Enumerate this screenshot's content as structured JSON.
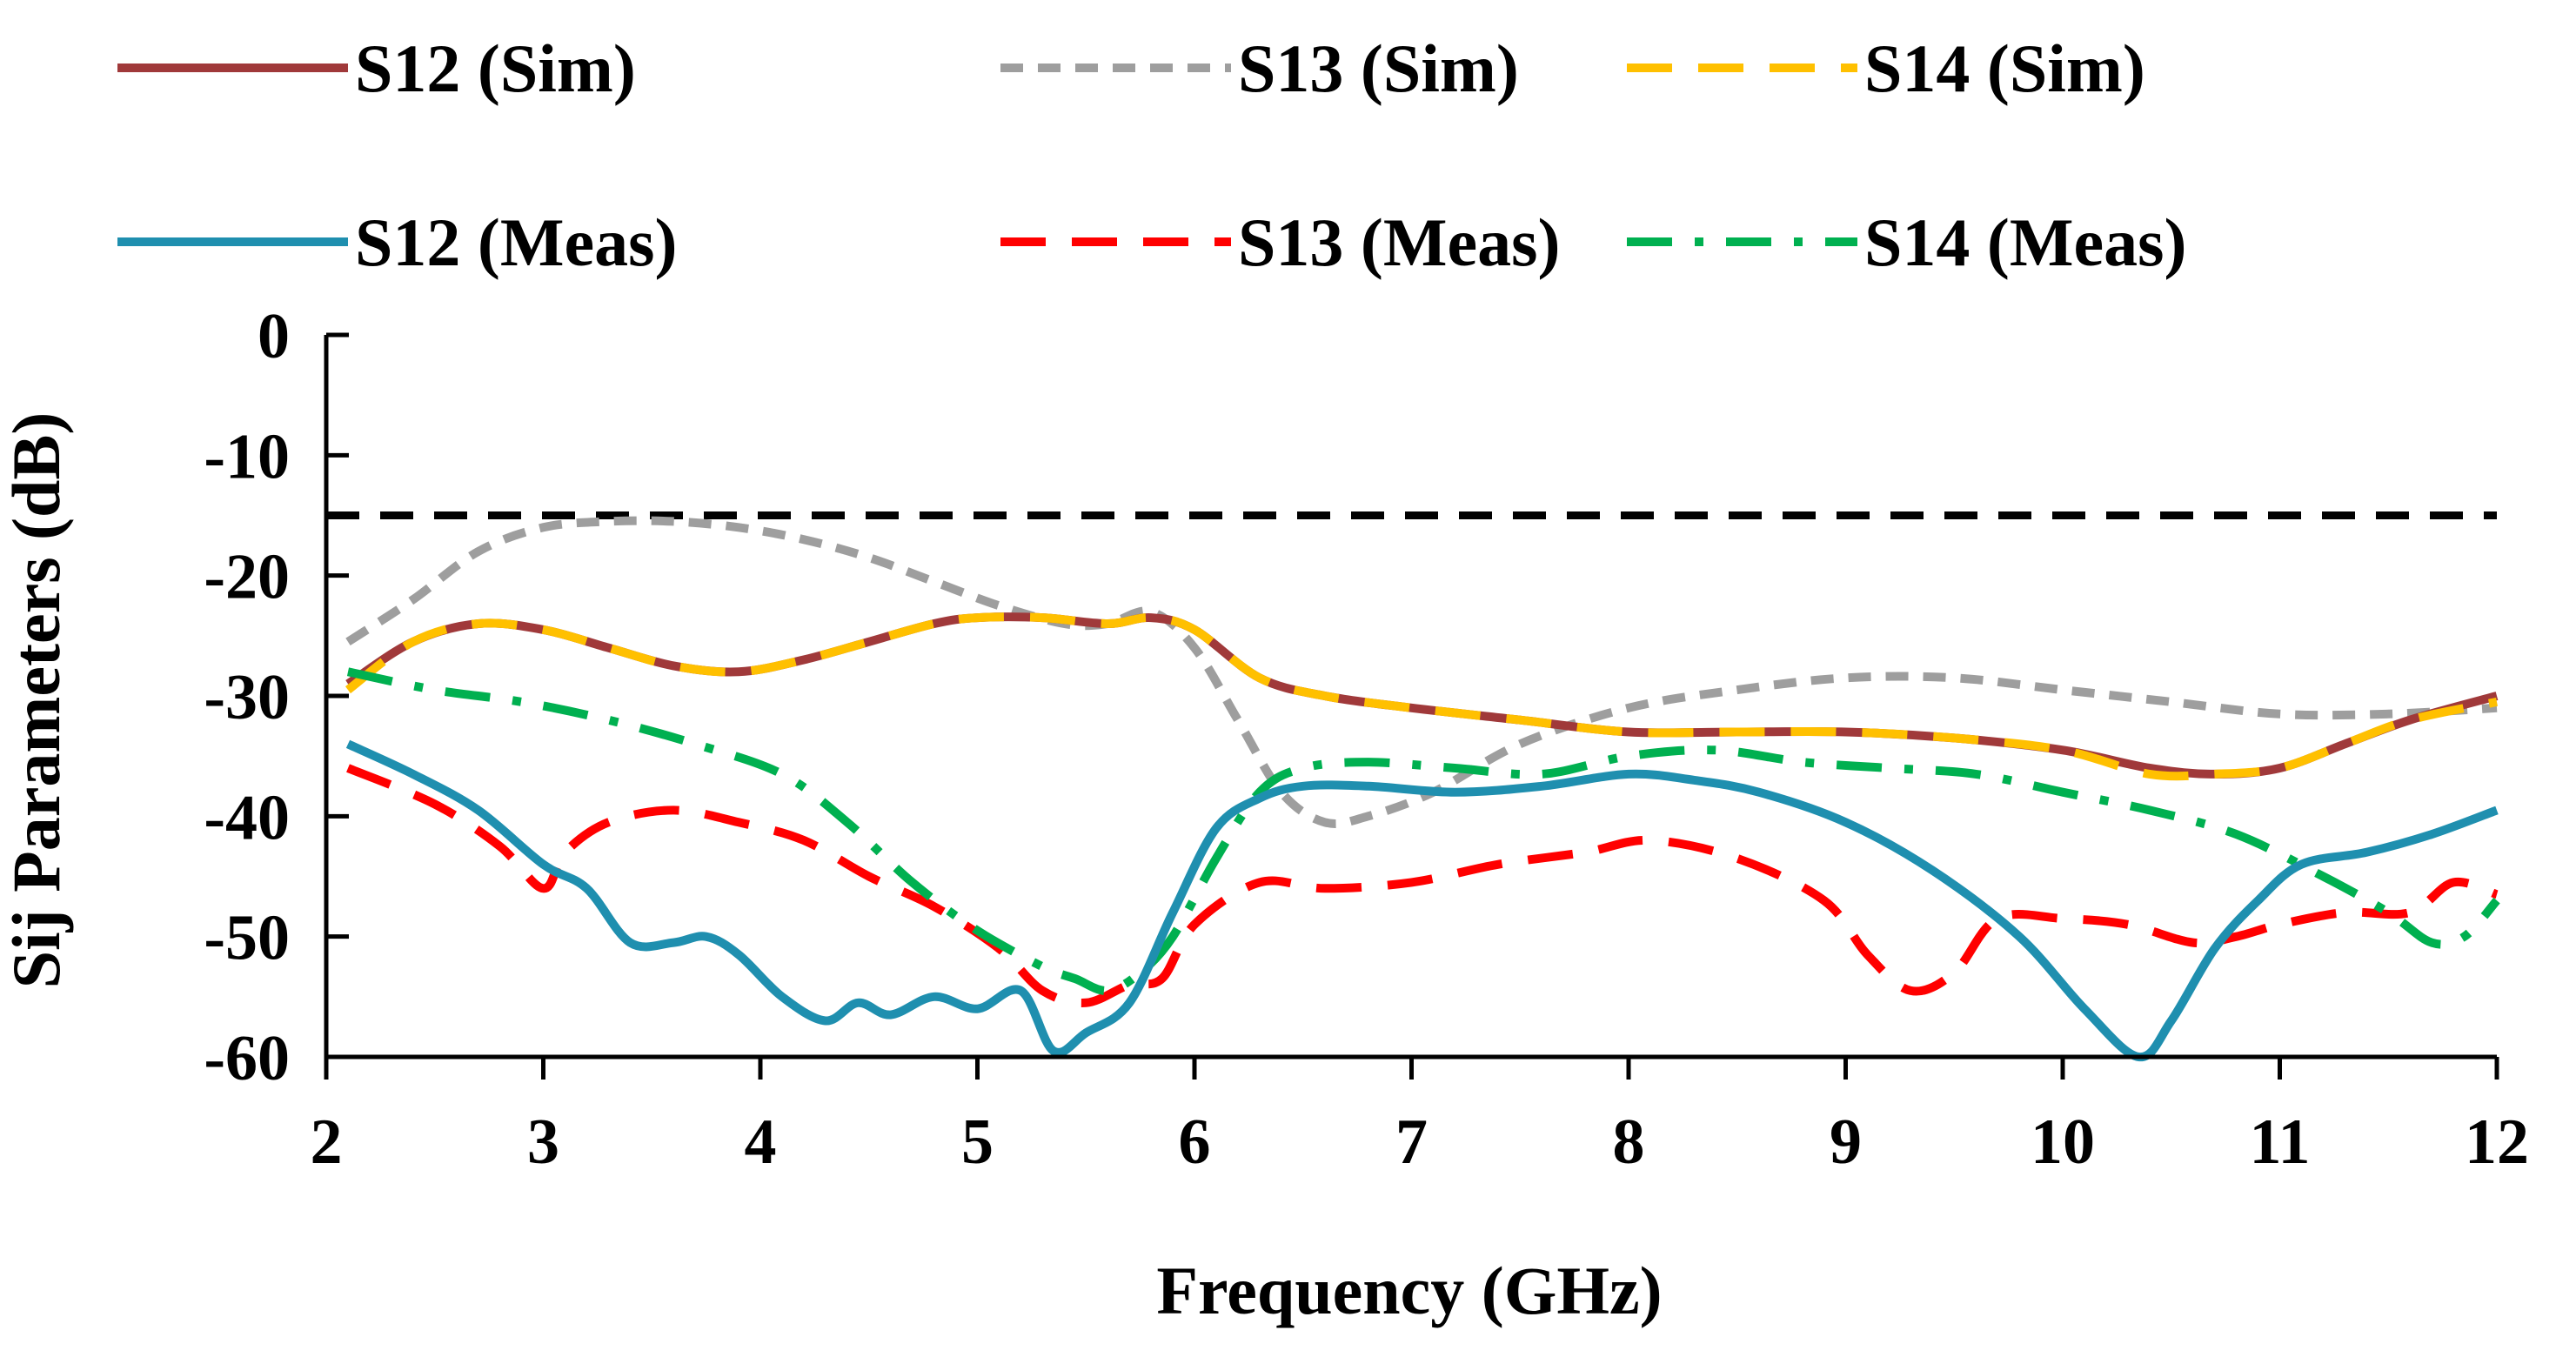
{
  "chart_data": {
    "type": "line",
    "xlabel": "Frequency (GHz)",
    "ylabel": "Sij Parameters (dB)",
    "xlim": [
      2,
      12
    ],
    "ylim": [
      -60,
      0
    ],
    "x_ticks": [
      "2",
      "3",
      "4",
      "5",
      "6",
      "7",
      "8",
      "9",
      "10",
      "11",
      "12"
    ],
    "y_ticks": [
      "0",
      "-10",
      "-20",
      "-30",
      "-40",
      "-50",
      "-60"
    ],
    "grid": false,
    "legend_position": "top",
    "threshold": {
      "y": -15,
      "color": "#000000",
      "style": "dashed"
    },
    "series": [
      {
        "name": "S12 (Sim)",
        "color": "#A0393A",
        "dash": "solid",
        "x": [
          2.1,
          2.4,
          2.7,
          3.0,
          3.3,
          3.6,
          3.9,
          4.2,
          4.5,
          4.8,
          5.0,
          5.3,
          5.6,
          5.8,
          6.0,
          6.3,
          6.6,
          7.0,
          7.5,
          8.0,
          8.5,
          9.0,
          9.5,
          10.0,
          10.4,
          10.7,
          11.0,
          11.3,
          11.6,
          12.0
        ],
        "y": [
          -29,
          -25.5,
          -24,
          -24.5,
          -26,
          -27.5,
          -28,
          -27,
          -25.5,
          -24,
          -23.5,
          -23.5,
          -24,
          -23.5,
          -24.5,
          -28.5,
          -30,
          -31,
          -32,
          -33,
          -33,
          -33,
          -33.5,
          -34.5,
          -36,
          -36.5,
          -36,
          -34,
          -32,
          -30
        ]
      },
      {
        "name": "S13 (Sim)",
        "color": "#9E9E9E",
        "dash": "short-dash",
        "x": [
          2.1,
          2.4,
          2.7,
          3.0,
          3.3,
          3.6,
          3.9,
          4.2,
          4.5,
          4.8,
          5.1,
          5.4,
          5.6,
          5.8,
          6.0,
          6.2,
          6.4,
          6.6,
          6.8,
          7.1,
          7.5,
          8.0,
          8.5,
          9.0,
          9.5,
          10.0,
          10.5,
          11.0,
          11.5,
          12.0
        ],
        "y": [
          -25.5,
          -22,
          -18,
          -16,
          -15.5,
          -15.5,
          -16,
          -17,
          -18.5,
          -20.5,
          -22.5,
          -24,
          -24,
          -23,
          -26,
          -32,
          -38,
          -40.5,
          -40,
          -38,
          -34,
          -31,
          -29.5,
          -28.5,
          -28.5,
          -29.5,
          -30.5,
          -31.5,
          -31.5,
          -31
        ]
      },
      {
        "name": "S14 (Sim)",
        "color": "#FFC000",
        "dash": "long-dash",
        "x": [
          2.1,
          2.4,
          2.7,
          3.0,
          3.3,
          3.6,
          3.9,
          4.2,
          4.5,
          4.8,
          5.0,
          5.3,
          5.6,
          5.8,
          6.0,
          6.3,
          6.6,
          7.0,
          7.5,
          8.0,
          8.5,
          9.0,
          9.5,
          10.0,
          10.4,
          10.7,
          11.0,
          11.3,
          11.6,
          12.0
        ],
        "y": [
          -29.5,
          -25.5,
          -24,
          -24.5,
          -26,
          -27.5,
          -28,
          -27,
          -25.5,
          -24,
          -23.5,
          -23.5,
          -24,
          -23.5,
          -24.5,
          -28.5,
          -30,
          -31,
          -32,
          -33,
          -33,
          -33,
          -33.5,
          -34.5,
          -36.5,
          -36.5,
          -36,
          -34,
          -32,
          -30.5
        ]
      },
      {
        "name": "S12 (Meas)",
        "color": "#1F8FAF",
        "dash": "solid",
        "x": [
          2.1,
          2.4,
          2.7,
          3.0,
          3.2,
          3.4,
          3.6,
          3.75,
          3.9,
          4.1,
          4.3,
          4.45,
          4.6,
          4.8,
          5.0,
          5.2,
          5.35,
          5.5,
          5.7,
          5.9,
          6.1,
          6.3,
          6.5,
          6.8,
          7.2,
          7.6,
          8.0,
          8.3,
          8.6,
          9.0,
          9.4,
          9.8,
          10.1,
          10.35,
          10.5,
          10.7,
          10.9,
          11.1,
          11.4,
          11.7,
          12.0
        ],
        "y": [
          -34,
          -36.5,
          -39.5,
          -44,
          -46,
          -50.5,
          -50.5,
          -50,
          -51.5,
          -55,
          -57,
          -55.5,
          -56.5,
          -55,
          -56,
          -54.5,
          -59.5,
          -58,
          -55.5,
          -48,
          -41,
          -38.5,
          -37.5,
          -37.5,
          -38,
          -37.5,
          -36.5,
          -37,
          -38,
          -40.5,
          -44.5,
          -50,
          -56,
          -60,
          -57,
          -51,
          -47,
          -44,
          -43,
          -41.5,
          -39.5
        ]
      },
      {
        "name": "S13 (Meas)",
        "color": "#FF0000",
        "dash": "long-dash",
        "x": [
          2.1,
          2.5,
          2.8,
          3.0,
          3.1,
          3.3,
          3.6,
          3.9,
          4.2,
          4.5,
          4.8,
          5.1,
          5.3,
          5.5,
          5.7,
          5.85,
          6.0,
          6.3,
          6.6,
          7.0,
          7.4,
          7.8,
          8.1,
          8.5,
          8.9,
          9.1,
          9.3,
          9.5,
          9.7,
          10.0,
          10.3,
          10.6,
          10.8,
          11.0,
          11.3,
          11.6,
          11.8,
          12.0
        ],
        "y": [
          -36,
          -39,
          -42.5,
          -46,
          -43,
          -40.5,
          -39.5,
          -40.5,
          -42,
          -45,
          -47.5,
          -51,
          -54.5,
          -55.5,
          -54,
          -53.5,
          -49,
          -45.5,
          -46,
          -45.5,
          -44,
          -43,
          -42,
          -43.5,
          -47,
          -51.5,
          -54.5,
          -53,
          -48.5,
          -48.5,
          -49,
          -50.5,
          -50,
          -49,
          -48,
          -48,
          -45.5,
          -46.5
        ]
      },
      {
        "name": "S14 (Meas)",
        "color": "#00B050",
        "dash": "dash-dot",
        "x": [
          2.1,
          2.5,
          2.9,
          3.3,
          3.7,
          4.1,
          4.4,
          4.7,
          5.0,
          5.3,
          5.45,
          5.6,
          5.75,
          5.9,
          6.1,
          6.3,
          6.5,
          6.8,
          7.2,
          7.6,
          8.0,
          8.4,
          8.8,
          9.2,
          9.6,
          10.0,
          10.4,
          10.8,
          11.2,
          11.5,
          11.7,
          11.85,
          12.0
        ],
        "y": [
          -28,
          -29.5,
          -30.5,
          -32,
          -34,
          -36.5,
          -40.5,
          -45.5,
          -49.5,
          -52.5,
          -53.5,
          -54.5,
          -53,
          -50,
          -43.5,
          -38,
          -36,
          -35.5,
          -36,
          -36.5,
          -35,
          -34.5,
          -35.5,
          -36,
          -36.5,
          -38,
          -39.5,
          -41.5,
          -45,
          -48,
          -50.5,
          -50,
          -47
        ]
      }
    ]
  }
}
